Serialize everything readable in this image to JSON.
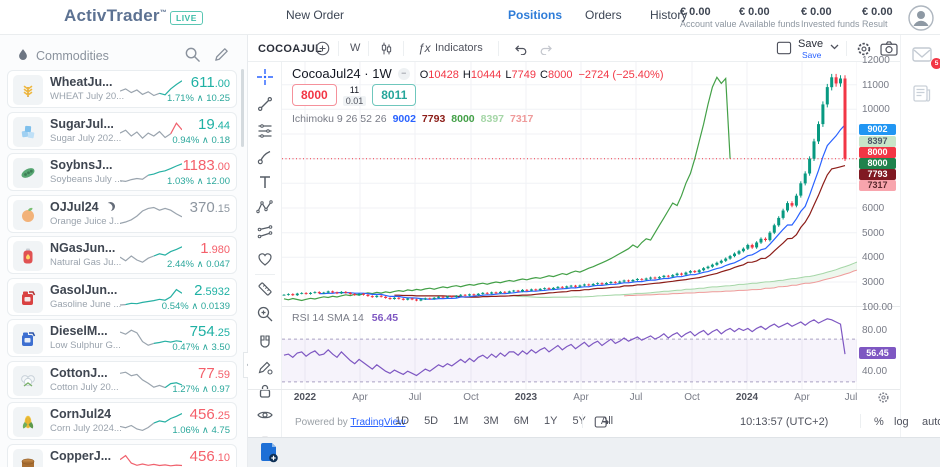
{
  "header": {
    "logo": "ActivTrader",
    "logo_suffix": "™",
    "live_badge": "LIVE",
    "stats": [
      {
        "value": "€ 0.00",
        "label": "Account value"
      },
      {
        "value": "€ 0.00",
        "label": "Available funds"
      },
      {
        "value": "€ 0.00",
        "label": "Invested funds"
      },
      {
        "value": "€ 0.00",
        "label": "Result"
      }
    ]
  },
  "rail": {
    "mail_badge": "5"
  },
  "sidebar": {
    "title": "Commodities",
    "items": [
      {
        "name": "WheatJu...",
        "sub": "WHEAT July 20...",
        "price": "611.00",
        "price_color": "teal",
        "change": "1.71% ∧ 10.25",
        "icon": "wheat",
        "moon": false,
        "spark": {
          "points": [
            0.55,
            0.45,
            0.62,
            0.5,
            0.7,
            0.58,
            0.75,
            0.65,
            0.72,
            0.45,
            0.25,
            0.08
          ],
          "split": 0.65,
          "c1": "#9aa4ae",
          "c2": "#26b0a3"
        }
      },
      {
        "name": "SugarJul...",
        "sub": "Sugar July 202...",
        "price": "19.44",
        "price_color": "teal",
        "change": "0.94% ∧ 0.18",
        "icon": "sugar",
        "moon": false,
        "spark": {
          "points": [
            0.55,
            0.42,
            0.68,
            0.5,
            0.78,
            0.55,
            0.68,
            0.48,
            0.75,
            0.58,
            0.1,
            0.4
          ],
          "split": 0.84,
          "c1": "#9aa4ae",
          "c2": "#f0616d"
        }
      },
      {
        "name": "SoybnsJ...",
        "sub": "Soybeans July ...",
        "price": "1183.00",
        "price_color": "red",
        "change": "1.03% ∧ 12.00",
        "icon": "soybean",
        "moon": false,
        "spark": {
          "points": [
            0.85,
            0.88,
            0.8,
            0.75,
            0.78,
            0.6,
            0.55,
            0.45,
            0.4,
            0.3,
            0.18,
            0.08
          ],
          "split": 0.45,
          "c1": "#9aa4ae",
          "c2": "#26b0a3"
        }
      },
      {
        "name": "OJJul24",
        "sub": "Orange Juice J...",
        "price": "370.15",
        "price_color": "gray",
        "change": "",
        "icon": "orange",
        "moon": true,
        "spark": {
          "points": [
            0.88,
            0.82,
            0.72,
            0.55,
            0.32,
            0.2,
            0.16,
            0.28,
            0.2,
            0.28,
            0.45,
            0.58
          ],
          "split": 1,
          "c1": "#9aa4ae",
          "c2": "#9aa4ae"
        }
      },
      {
        "name": "NGasJun...",
        "sub": "Natural Gas Ju...",
        "price": "1.980",
        "price_color": "red",
        "change": "2.44% ∧ 0.047",
        "icon": "gas",
        "moon": false,
        "spark": {
          "points": [
            0.55,
            0.72,
            0.5,
            0.68,
            0.78,
            0.6,
            0.5,
            0.4,
            0.46,
            0.3,
            0.2,
            0.08
          ],
          "split": 0.5,
          "c1": "#9aa4ae",
          "c2": "#26b0a3"
        }
      },
      {
        "name": "GasolJun...",
        "sub": "Gasoline June ...",
        "price": "2.5932",
        "price_color": "teal",
        "change": "0.54% ∧ 0.0139",
        "icon": "gasoline",
        "moon": false,
        "spark": {
          "points": [
            0.82,
            0.8,
            0.74,
            0.76,
            0.7,
            0.66,
            0.62,
            0.56,
            0.6,
            0.45,
            0.12,
            0.28
          ],
          "split": 0.05,
          "c1": "#9aa4ae",
          "c2": "#26b0a3"
        }
      },
      {
        "name": "DieselM...",
        "sub": "Low Sulphur G...",
        "price": "754.25",
        "price_color": "teal",
        "change": "0.47% ∧ 3.50",
        "icon": "diesel",
        "moon": false,
        "spark": {
          "points": [
            0.18,
            0.28,
            0.1,
            0.22,
            0.62,
            0.78,
            0.7,
            0.66,
            0.6,
            0.64,
            0.58,
            0.62
          ],
          "split": 0.55,
          "c1": "#9aa4ae",
          "c2": "#26b0a3"
        }
      },
      {
        "name": "CottonJ...",
        "sub": "Cotton July 20...",
        "price": "77.59",
        "price_color": "red",
        "change": "1.27% ∧ 0.97",
        "icon": "cotton",
        "moon": false,
        "spark": {
          "points": [
            0.15,
            0.1,
            0.26,
            0.2,
            0.45,
            0.6,
            0.78,
            0.7,
            0.8,
            0.62,
            0.58,
            0.68
          ],
          "split": 0.7,
          "c1": "#9aa4ae",
          "c2": "#26b0a3"
        }
      },
      {
        "name": "CornJul24",
        "sub": "Corn July 2024...",
        "price": "456.25",
        "price_color": "red",
        "change": "1.06% ∧ 4.75",
        "icon": "corn",
        "moon": false,
        "spark": {
          "points": [
            0.7,
            0.76,
            0.66,
            0.82,
            0.88,
            0.75,
            0.55,
            0.45,
            0.5,
            0.34,
            0.24,
            0.12
          ],
          "split": 0.5,
          "c1": "#9aa4ae",
          "c2": "#26b0a3"
        }
      },
      {
        "name": "CopperJ...",
        "sub": "",
        "price": "456.10",
        "price_color": "red",
        "change": "",
        "icon": "copper",
        "moon": false,
        "spark": {
          "points": [
            0.3,
            0.12,
            0.46,
            0.56,
            0.5,
            0.56,
            0.52,
            0.57,
            0.54,
            0.58,
            0.55,
            0.57
          ],
          "split": 1,
          "c1": "#f0616d",
          "c2": "#f0616d"
        }
      }
    ]
  },
  "chart": {
    "toolbar": {
      "symbol": "COCOAJUL",
      "timeframe": "W",
      "fx": "ƒx",
      "indicators": "Indicators",
      "save_label": "Save",
      "save_sub": "Save"
    },
    "legend": {
      "title": "CocoaJul24 · 1W",
      "ohlc": [
        {
          "k": "O",
          "v": "10428"
        },
        {
          "k": "H",
          "v": "10444"
        },
        {
          "k": "L",
          "v": "7749"
        },
        {
          "k": "C",
          "v": "8000"
        }
      ],
      "change": "−2724 (−25.40%)"
    },
    "quote": {
      "bid": "8000",
      "spread_top": "11",
      "spread_bottom": "0.01",
      "ask": "8011"
    },
    "ichimoku": {
      "label": "Ichimoku 9 26 52 26",
      "values": [
        {
          "v": "9002",
          "c": "#2962ff"
        },
        {
          "v": "7793",
          "c": "#8c1d18"
        },
        {
          "v": "8000",
          "c": "#43a047"
        },
        {
          "v": "8397",
          "c": "#a5d6a7"
        },
        {
          "v": "7317",
          "c": "#ef9a9a"
        }
      ]
    },
    "price_axis": {
      "ticks": [
        {
          "v": "12000",
          "y": 60
        },
        {
          "v": "11000",
          "y": 84.7
        },
        {
          "v": "10000",
          "y": 109.3
        },
        {
          "v": "6000",
          "y": 208
        },
        {
          "v": "5000",
          "y": 232.7
        },
        {
          "v": "4000",
          "y": 257.3
        },
        {
          "v": "3000",
          "y": 282
        }
      ],
      "badges": [
        {
          "v": "9002",
          "bg": "#2196f3",
          "fg": "#ffffff",
          "y": 124
        },
        {
          "v": "8397",
          "bg": "#c8e6c9",
          "fg": "#4a5568",
          "y": 135.5
        },
        {
          "v": "8000",
          "bg": "#f23645",
          "fg": "#ffffff",
          "y": 147
        },
        {
          "v": "8000",
          "bg": "#1e824c",
          "fg": "#ffffff",
          "y": 158
        },
        {
          "v": "7793",
          "bg": "#801922",
          "fg": "#ffffff",
          "y": 169
        },
        {
          "v": "7317",
          "bg": "#f8a5ad",
          "fg": "#5a2a2e",
          "y": 180
        }
      ]
    },
    "x_axis": [
      {
        "label": "2022",
        "x": 305,
        "bold": true
      },
      {
        "label": "Apr",
        "x": 360,
        "bold": false
      },
      {
        "label": "Jul",
        "x": 415,
        "bold": false
      },
      {
        "label": "Oct",
        "x": 471,
        "bold": false
      },
      {
        "label": "2023",
        "x": 526,
        "bold": true
      },
      {
        "label": "Apr",
        "x": 581,
        "bold": false
      },
      {
        "label": "Jul",
        "x": 636,
        "bold": false
      },
      {
        "label": "Oct",
        "x": 692,
        "bold": false
      },
      {
        "label": "2024",
        "x": 747,
        "bold": true
      },
      {
        "label": "Apr",
        "x": 802,
        "bold": false
      },
      {
        "label": "Jul",
        "x": 851,
        "bold": false
      }
    ],
    "rsi": {
      "label": "RSI 14 SMA 14",
      "value": "56.45",
      "ticks": [
        {
          "v": "100.00",
          "y": 307
        },
        {
          "v": "80.00",
          "y": 330
        },
        {
          "v": "40.00",
          "y": 371
        }
      ],
      "badge": {
        "v": "56.45",
        "y": 347
      }
    },
    "bottom_toolbar": {
      "powered": "Powered by",
      "tv_link": "TradingView",
      "ranges": [
        "1D",
        "5D",
        "1M",
        "3M",
        "6M",
        "1Y",
        "5Y",
        "All"
      ],
      "clock": "10:13:57 (UTC+2)",
      "percent": "%",
      "log": "log",
      "auto": "auto"
    },
    "series": {
      "closes": [
        2480,
        2510,
        2465,
        2530,
        2555,
        2520,
        2560,
        2590,
        2545,
        2570,
        2620,
        2580,
        2540,
        2600,
        2560,
        2510,
        2470,
        2520,
        2480,
        2430,
        2390,
        2440,
        2400,
        2350,
        2310,
        2360,
        2320,
        2280,
        2330,
        2290,
        2250,
        2300,
        2340,
        2310,
        2360,
        2400,
        2370,
        2420,
        2390,
        2440,
        2480,
        2450,
        2500,
        2470,
        2520,
        2560,
        2530,
        2580,
        2550,
        2600,
        2570,
        2620,
        2650,
        2620,
        2680,
        2650,
        2700,
        2670,
        2720,
        2750,
        2710,
        2760,
        2800,
        2770,
        2820,
        2850,
        2810,
        2860,
        2900,
        2870,
        2920,
        2950,
        2910,
        2960,
        3000,
        2970,
        3020,
        3060,
        3030,
        3080,
        3120,
        3090,
        3140,
        3180,
        3150,
        3200,
        3250,
        3220,
        3280,
        3340,
        3300,
        3380,
        3440,
        3400,
        3480,
        3560,
        3620,
        3700,
        3780,
        3860,
        3950,
        4050,
        4150,
        4250,
        4350,
        4500,
        4400,
        4600,
        4750,
        4700,
        5000,
        5300,
        5600,
        5900,
        6200,
        6100,
        6500,
        7000,
        7400,
        8000,
        8700,
        9400,
        10200,
        10900,
        11300,
        11050,
        11250,
        8000
      ],
      "rsi": [
        55,
        56,
        53,
        57,
        58,
        54,
        57,
        59,
        55,
        56,
        60,
        56,
        53,
        58,
        54,
        50,
        47,
        51,
        48,
        45,
        42,
        46,
        43,
        40,
        38,
        41,
        39,
        37,
        40,
        38,
        36,
        39,
        42,
        40,
        43,
        46,
        44,
        47,
        45,
        48,
        51,
        48,
        52,
        49,
        53,
        55,
        52,
        56,
        53,
        57,
        54,
        58,
        58,
        55,
        59,
        56,
        60,
        57,
        60,
        62,
        58,
        61,
        64,
        60,
        63,
        65,
        61,
        64,
        67,
        63,
        66,
        68,
        64,
        67,
        70,
        66,
        68,
        71,
        68,
        70,
        72,
        69,
        71,
        73,
        70,
        72,
        75,
        71,
        74,
        76,
        72,
        75,
        77,
        73,
        76,
        78,
        74,
        77,
        79,
        75,
        78,
        80,
        77,
        80,
        78,
        80,
        77,
        80,
        82,
        79,
        82,
        84,
        81,
        83,
        85,
        82,
        84,
        86,
        83,
        86,
        88,
        85,
        87,
        89,
        88,
        86,
        84,
        56
      ]
    },
    "colors": {
      "up": "#089981",
      "down": "#f23645",
      "tenkan": "#2962ff",
      "kijun": "#8c1d18",
      "chikou": "#43a047",
      "senkouA": "#a5d6a7",
      "senkouB": "#ef9a9a",
      "rsi": "#7e57c2",
      "price_line": "#f23645"
    }
  },
  "bottom_bar": {
    "new_order": "New Order",
    "tabs": [
      {
        "label": "Positions",
        "active": true
      },
      {
        "label": "Orders",
        "active": false
      },
      {
        "label": "History",
        "active": false
      }
    ]
  }
}
